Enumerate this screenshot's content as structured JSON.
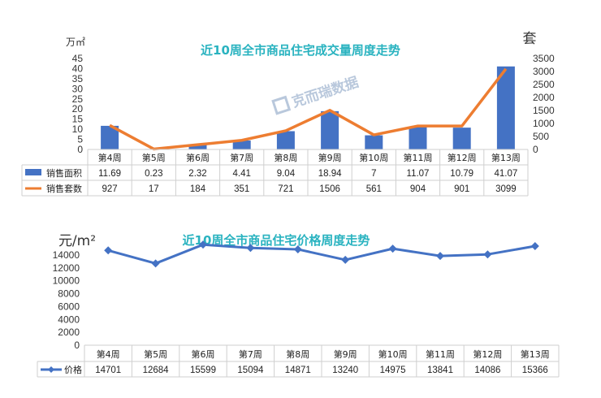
{
  "chart_data": [
    {
      "type": "bar",
      "title": "近10周全市商品住宅成交量周度走势",
      "left_unit": "万㎡",
      "right_unit": "套",
      "categories": [
        "第4周",
        "第5周",
        "第6周",
        "第7周",
        "第8周",
        "第9周",
        "第10周",
        "第11周",
        "第12周",
        "第13周"
      ],
      "ylim_left": [
        0,
        45
      ],
      "yticks_left": [
        0,
        5,
        10,
        15,
        20,
        25,
        30,
        35,
        40,
        45
      ],
      "ylim_right": [
        0,
        3500
      ],
      "yticks_right": [
        0,
        500,
        1000,
        1500,
        2000,
        2500,
        3000,
        3500
      ],
      "series": [
        {
          "name": "销售面积",
          "type": "bar",
          "axis": "left",
          "color": "#4472c4",
          "values": [
            11.69,
            0.23,
            2.32,
            4.41,
            9.04,
            18.94,
            7,
            11.07,
            10.79,
            41.07
          ]
        },
        {
          "name": "销售套数",
          "type": "line",
          "axis": "right",
          "color": "#ed7d31",
          "values": [
            927,
            17,
            184,
            351,
            721,
            1506,
            561,
            904,
            901,
            3099
          ]
        }
      ],
      "watermark": "克而瑞数据"
    },
    {
      "type": "line",
      "title": "近10周全市商品住宅价格周度走势",
      "unit": "元/m²",
      "categories": [
        "第4周",
        "第5周",
        "第6周",
        "第7周",
        "第8周",
        "第9周",
        "第10周",
        "第11周",
        "第12周",
        "第13周"
      ],
      "ylim": [
        0,
        16000
      ],
      "yticks": [
        0,
        2000,
        4000,
        6000,
        8000,
        10000,
        12000,
        14000
      ],
      "series": [
        {
          "name": "价格",
          "type": "line",
          "color": "#4472c4",
          "values": [
            14701,
            12684,
            15599,
            15094,
            14871,
            13240,
            14975,
            13841,
            14086,
            15366
          ]
        }
      ]
    }
  ]
}
